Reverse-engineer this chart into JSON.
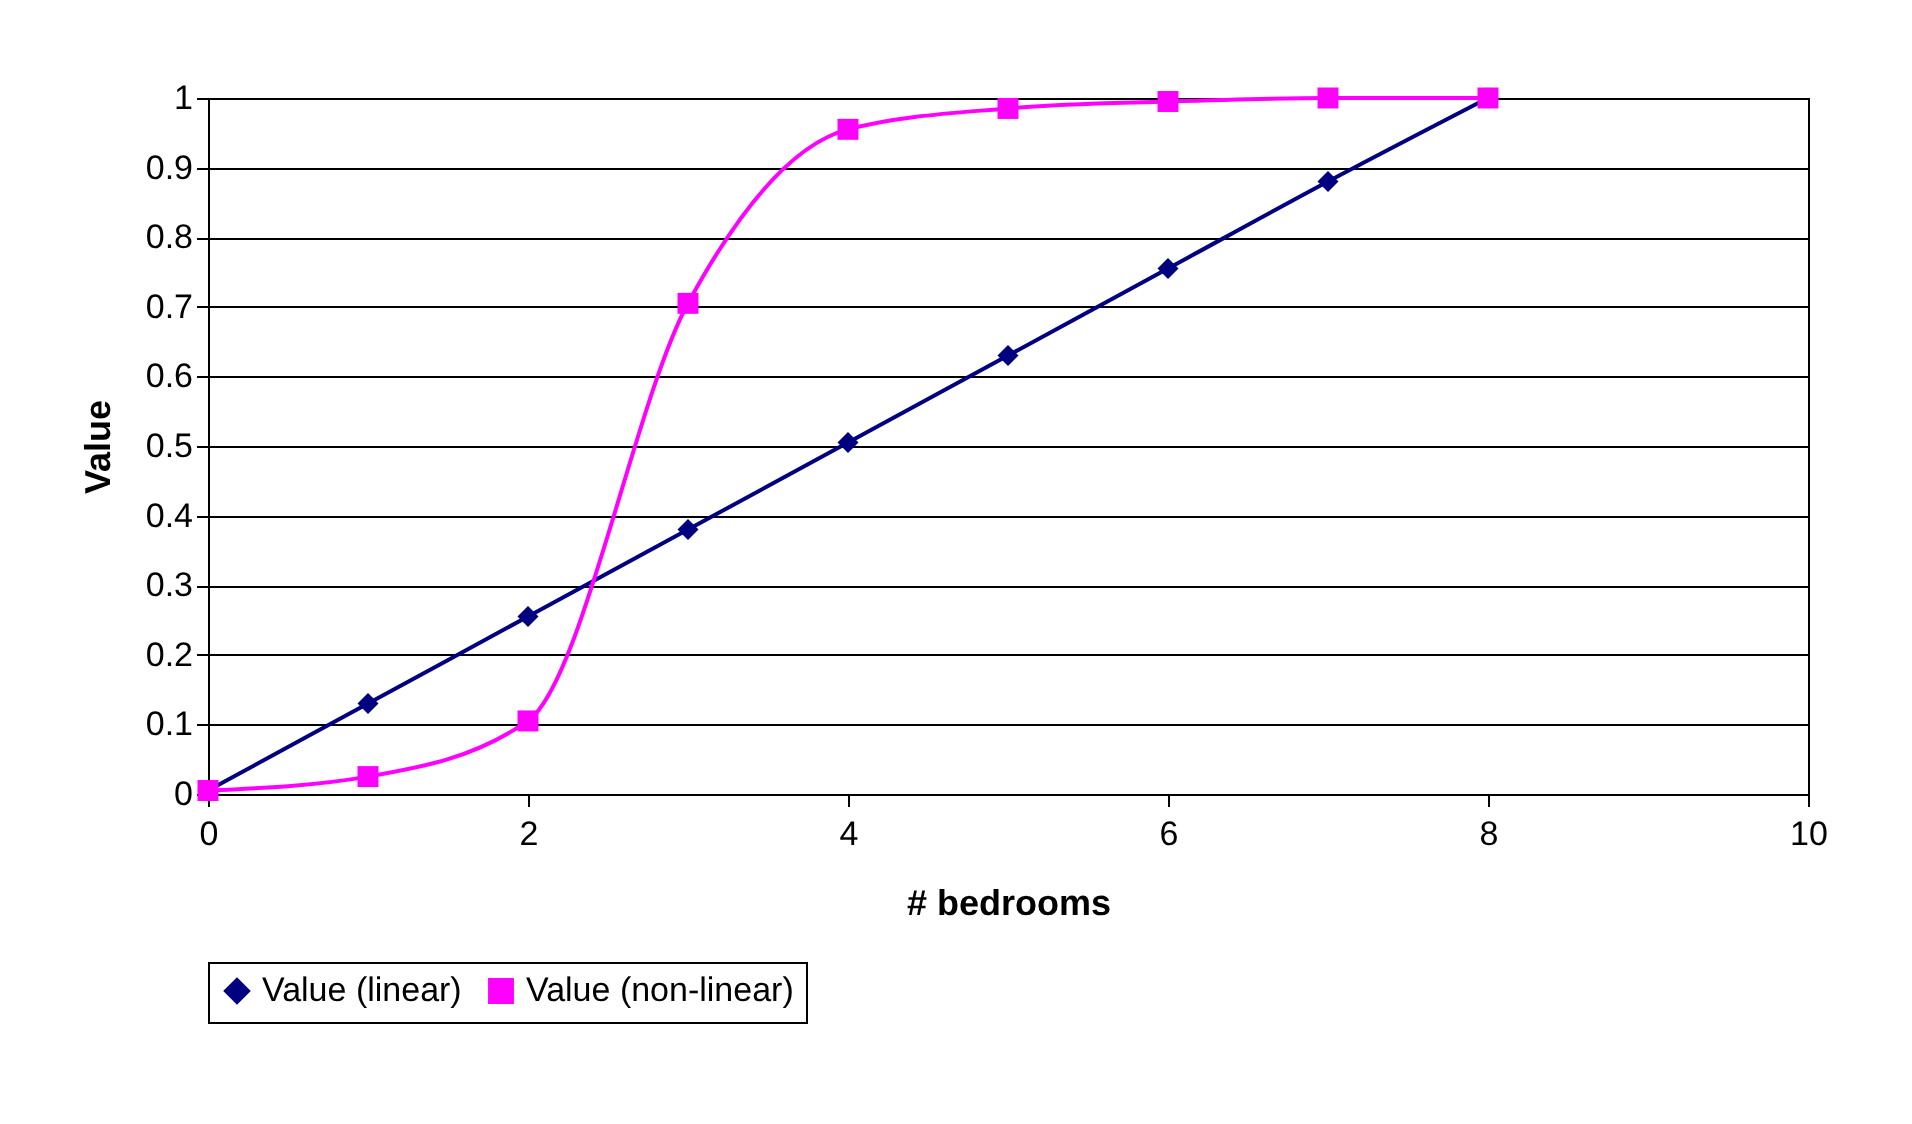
{
  "chart_data": {
    "type": "line",
    "xlabel": "# bedrooms",
    "ylabel": "Value",
    "x": [
      0,
      1,
      2,
      3,
      4,
      5,
      6,
      7,
      8
    ],
    "series": [
      {
        "name": "Value (linear)",
        "color": "#000080",
        "marker": "diamond",
        "values": [
          0.005,
          0.13,
          0.255,
          0.38,
          0.505,
          0.63,
          0.755,
          0.88,
          1.0
        ]
      },
      {
        "name": "Value (non-linear)",
        "color": "#ff00ff",
        "marker": "square",
        "values": [
          0.005,
          0.025,
          0.105,
          0.705,
          0.955,
          0.985,
          0.995,
          1.0,
          1.0
        ]
      }
    ],
    "xlim": [
      0,
      10
    ],
    "xticks": [
      0,
      2,
      4,
      6,
      8,
      10
    ],
    "ylim": [
      0,
      1
    ],
    "yticks": [
      0,
      0.1,
      0.2,
      0.3,
      0.4,
      0.5,
      0.6,
      0.7,
      0.8,
      0.9,
      1
    ],
    "grid": "y",
    "legend": "bottom"
  }
}
